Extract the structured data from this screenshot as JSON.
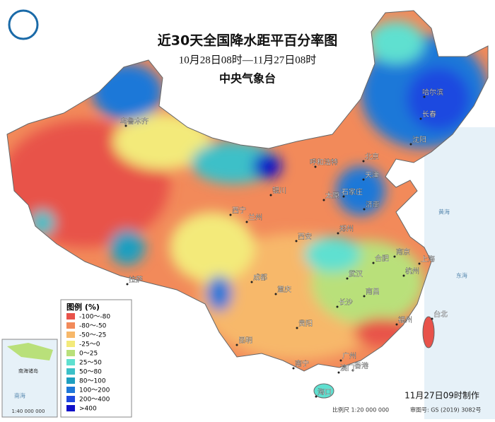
{
  "header": {
    "title": "近30天全国降水距平百分率图",
    "subtitle": "10月28日08时—11月27日08时",
    "agency": "中央气象台"
  },
  "legend": {
    "title": "图例 (%)",
    "items": [
      {
        "label": "-100～-80",
        "color": "#e8524a"
      },
      {
        "label": "-80～-50",
        "color": "#f28a5a"
      },
      {
        "label": "-50～-25",
        "color": "#f7b86a"
      },
      {
        "label": "-25～0",
        "color": "#f3ea7a"
      },
      {
        "label": "0～25",
        "color": "#b9e07a"
      },
      {
        "label": "25～50",
        "color": "#5fe0d0"
      },
      {
        "label": "50～80",
        "color": "#3cc0c8"
      },
      {
        "label": "80～100",
        "color": "#1e9fc0"
      },
      {
        "label": "100～200",
        "color": "#1f78d8"
      },
      {
        "label": "200～400",
        "color": "#1e48e0"
      },
      {
        "label": ">400",
        "color": "#1010c8"
      }
    ]
  },
  "cities": [
    "乌鲁木齐",
    "哈尔滨",
    "长春",
    "沈阳",
    "北京",
    "天津",
    "呼和浩特",
    "石家庄",
    "太原",
    "济南",
    "银川",
    "西宁",
    "兰州",
    "郑州",
    "西安",
    "合肥",
    "南京",
    "上海",
    "杭州",
    "武汉",
    "成都",
    "重庆",
    "长沙",
    "南昌",
    "拉萨",
    "贵阳",
    "福州",
    "台北",
    "昆明",
    "南宁",
    "广州",
    "香港",
    "澳门",
    "海口"
  ],
  "seas": [
    "黄海",
    "东海",
    "南海"
  ],
  "inset": {
    "label": "南海诸岛",
    "scale": "1:40 000 000"
  },
  "footer": {
    "made": "11月27日09时制作",
    "scale": "比例尺 1:20 000 000",
    "approval": "审图号: GS (2019) 3082号"
  }
}
